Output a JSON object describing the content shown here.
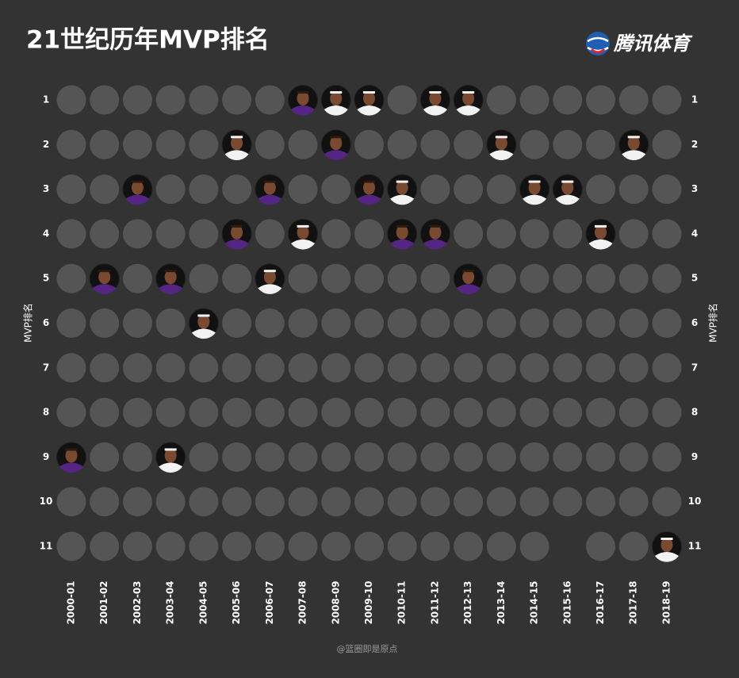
{
  "chart_data": {
    "type": "dot-matrix",
    "title": "21世纪历年MVP排名",
    "logo": "腾讯体育",
    "footer": "@篮圈即是原点",
    "y_label": "MVP排名",
    "categories": [
      "2000-01",
      "2001-02",
      "2002-03",
      "2003-04",
      "2004-05",
      "2005-06",
      "2006-07",
      "2007-08",
      "2008-09",
      "2009-10",
      "2010-11",
      "2011-12",
      "2012-13",
      "2013-14",
      "2014-15",
      "2015-16",
      "2016-17",
      "2017-18",
      "2018-19"
    ],
    "ylim": [
      1,
      11
    ],
    "y_inverted": true,
    "yticks": [
      1,
      2,
      3,
      4,
      5,
      6,
      7,
      8,
      9,
      10,
      11
    ],
    "cell_color": "#555555",
    "gaps": [
      {
        "x": "2015-16",
        "y": 11
      }
    ],
    "series": [
      {
        "color": "#552583",
        "values": [
          9,
          5,
          3,
          5,
          null,
          4,
          3,
          1,
          2,
          3,
          4,
          4,
          5,
          null,
          null,
          null,
          null,
          null,
          null
        ]
      },
      {
        "color": "#f2f2f2",
        "values": [
          null,
          null,
          null,
          9,
          6,
          2,
          5,
          4,
          1,
          1,
          3,
          1,
          1,
          2,
          3,
          3,
          4,
          2,
          11
        ]
      }
    ]
  }
}
